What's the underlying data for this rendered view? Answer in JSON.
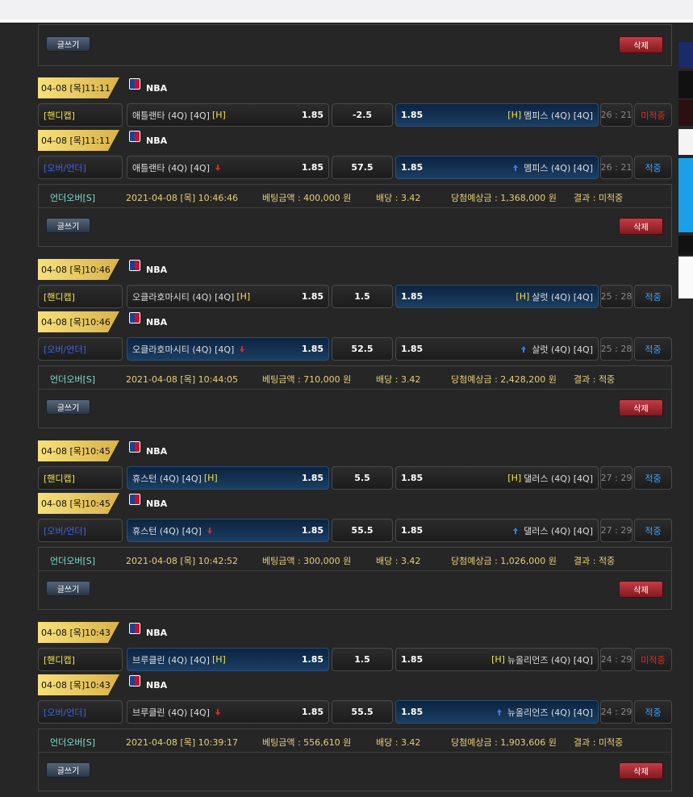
{
  "buttons": {
    "write": "글쓰기",
    "delete": "삭제"
  },
  "league": "NBA",
  "games": [
    {
      "rows": [
        {
          "date": "04-08 [목]11:11",
          "type": "[핸디캡]",
          "type_color": "#f2e34a",
          "home": "애틀랜타 (4Q) [4Q]",
          "home_tag": "[H]",
          "home_odds": 1.85,
          "line": -2.5,
          "away_odds": 1.85,
          "away_tag": "[H]",
          "away": "멤피스 (4Q) [4Q]",
          "score": "26 : 21",
          "status": "미적중",
          "status_color": "#e8281e",
          "selected": "away"
        },
        {
          "date": "04-08 [목]11:11",
          "type": "[오버/언더]",
          "type_color": "#3d63f0",
          "home": "애틀랜타 (4Q) [4Q]",
          "home_odds": 1.85,
          "line": 57.5,
          "away_odds": 1.85,
          "away": "멤피스 (4Q) [4Q]",
          "score": "26 : 21",
          "status": "적중",
          "status_color": "#3aa2ff",
          "selected": "away"
        }
      ],
      "summary": {
        "kind": "언더오버[S]",
        "time": "2021-04-08 [목] 10:46:46",
        "amount": "베팅금액 : 400,000 원",
        "odds": "배당 : 3.42",
        "expected": "당첨예상금 : 1,368,000 원",
        "result": "결과 : 미적중"
      }
    },
    {
      "rows": [
        {
          "date": "04-08 [목]10:46",
          "type": "[핸디캡]",
          "type_color": "#f2e34a",
          "home": "오클라호마시티 (4Q) [4Q]",
          "home_tag": "[H]",
          "home_odds": 1.85,
          "line": 1.5,
          "away_odds": 1.85,
          "away_tag": "[H]",
          "away": "살럿 (4Q) [4Q]",
          "score": "25 : 28",
          "status": "적중",
          "status_color": "#3aa2ff",
          "selected": "away"
        },
        {
          "date": "04-08 [목]10:46",
          "type": "[오버/언더]",
          "type_color": "#3d63f0",
          "home": "오클라호마시티 (4Q) [4Q]",
          "home_odds": 1.85,
          "line": 52.5,
          "away_odds": 1.85,
          "away": "살럿 (4Q) [4Q]",
          "score": "25 : 28",
          "status": "적중",
          "status_color": "#3aa2ff",
          "selected": "home"
        }
      ],
      "summary": {
        "kind": "언더오버[S]",
        "time": "2021-04-08 [목] 10:44:05",
        "amount": "베팅금액 : 710,000 원",
        "odds": "배당 : 3.42",
        "expected": "당첨예상금 : 2,428,200 원",
        "result": "결과 : 적중"
      }
    },
    {
      "rows": [
        {
          "date": "04-08 [목]10:45",
          "type": "[핸디캡]",
          "type_color": "#f2e34a",
          "home": "휴스턴 (4Q) [4Q]",
          "home_tag": "[H]",
          "home_odds": 1.85,
          "line": 5.5,
          "away_odds": 1.85,
          "away_tag": "[H]",
          "away": "댈러스 (4Q) [4Q]",
          "score": "27 : 29",
          "status": "적중",
          "status_color": "#3aa2ff",
          "selected": "home"
        },
        {
          "date": "04-08 [목]10:45",
          "type": "[오버/언더]",
          "type_color": "#3d63f0",
          "home": "휴스턴 (4Q) [4Q]",
          "home_odds": 1.85,
          "line": 55.5,
          "away_odds": 1.85,
          "away": "댈러스 (4Q) [4Q]",
          "score": "27 : 29",
          "status": "적중",
          "status_color": "#3aa2ff",
          "selected": "home"
        }
      ],
      "summary": {
        "kind": "언더오버[S]",
        "time": "2021-04-08 [목] 10:42:52",
        "amount": "베팅금액 : 300,000 원",
        "odds": "배당 : 3.42",
        "expected": "당첨예상금 : 1,026,000 원",
        "result": "결과 : 적중"
      }
    },
    {
      "rows": [
        {
          "date": "04-08 [목]10:43",
          "type": "[핸디캡]",
          "type_color": "#f2e34a",
          "home": "브루클린 (4Q) [4Q]",
          "home_tag": "[H]",
          "home_odds": 1.85,
          "line": 1.5,
          "away_odds": 1.85,
          "away_tag": "[H]",
          "away": "뉴올리언즈 (4Q) [4Q]",
          "score": "24 : 29",
          "status": "미적중",
          "status_color": "#e8281e",
          "selected": "home"
        },
        {
          "date": "04-08 [목]10:43",
          "type": "[오버/언더]",
          "type_color": "#3d63f0",
          "home": "브루클린 (4Q) [4Q]",
          "home_odds": 1.85,
          "line": 55.5,
          "away_odds": 1.85,
          "away": "뉴올리언즈 (4Q) [4Q]",
          "score": "24 : 29",
          "status": "적중",
          "status_color": "#3aa2ff",
          "selected": "away"
        }
      ],
      "summary": {
        "kind": "언더오버[S]",
        "time": "2021-04-08 [목] 10:39:17",
        "amount": "베팅금액 : 556,610 원",
        "odds": "배당 : 3.42",
        "expected": "당첨예상금 : 1,903,606 원",
        "result": "결과 : 미적중"
      }
    }
  ]
}
